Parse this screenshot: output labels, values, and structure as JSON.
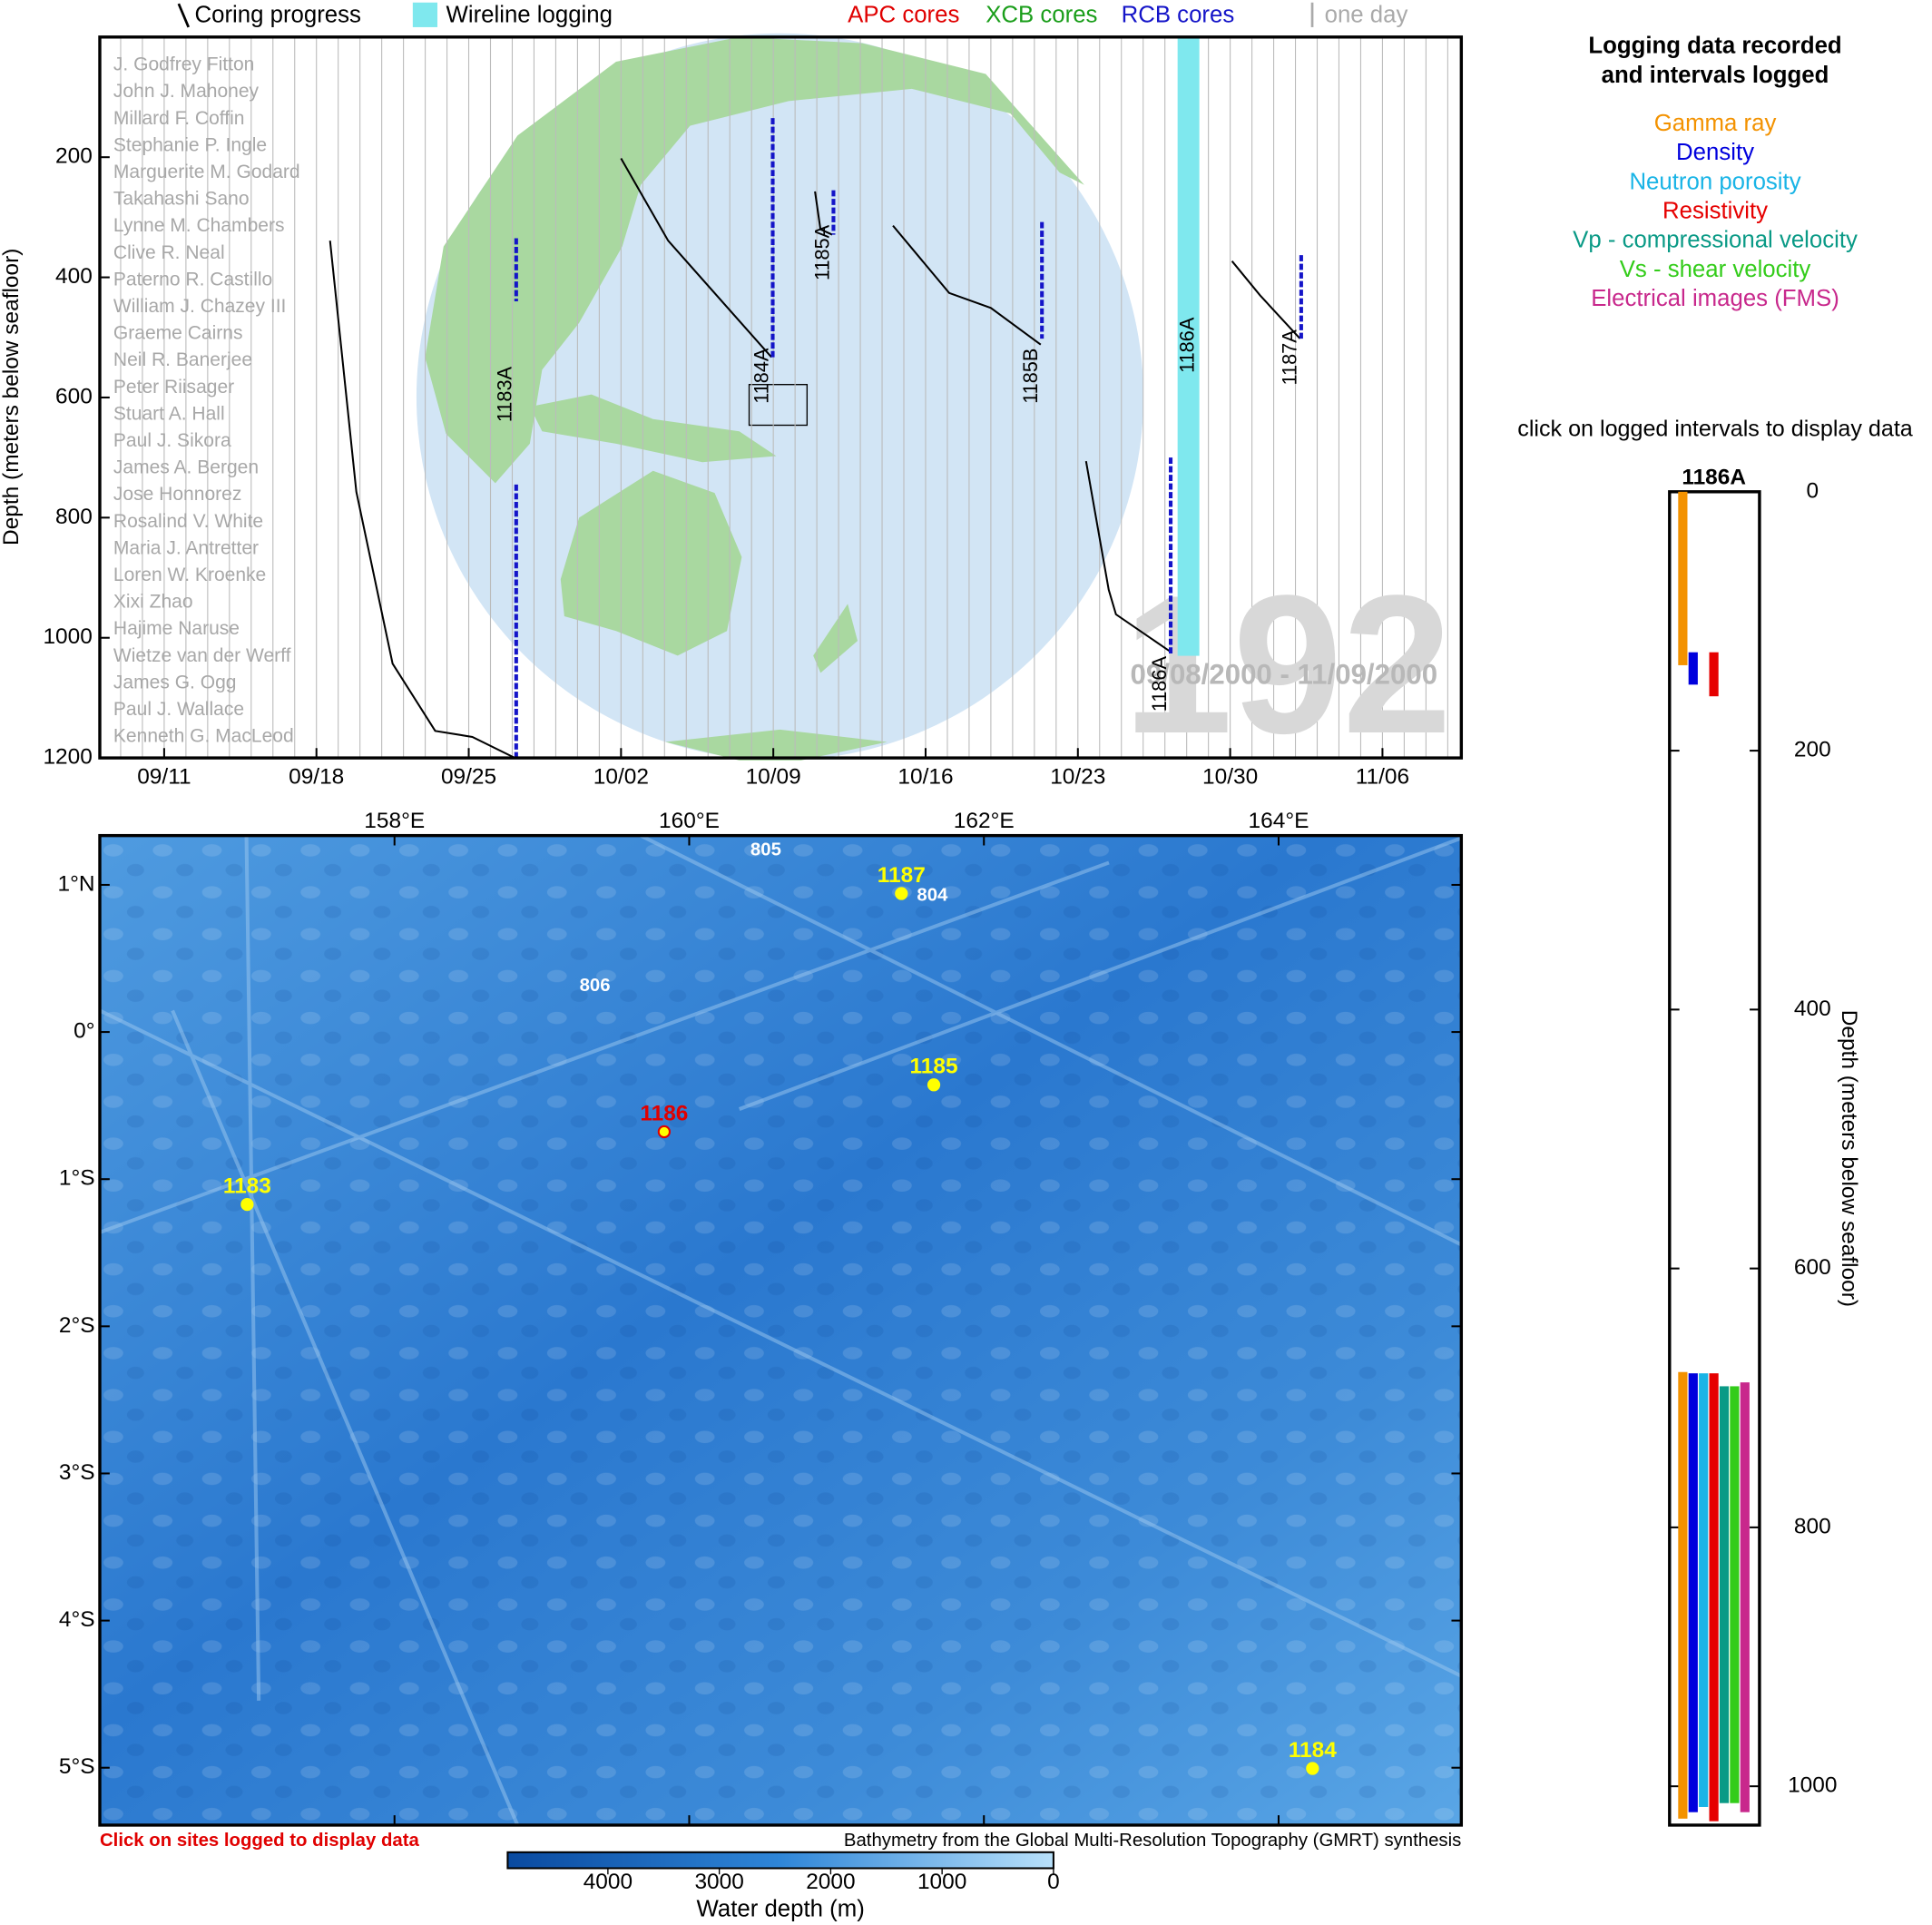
{
  "timeline": {
    "legend": [
      {
        "label": "Coring progress",
        "color": "#000000"
      },
      {
        "label": "Wireline logging",
        "color": "#7fe8ee"
      },
      {
        "label": "APC cores",
        "color": "#e00000"
      },
      {
        "label": "XCB cores",
        "color": "#1a9e1a"
      },
      {
        "label": "RCB cores",
        "color": "#1414c8"
      },
      {
        "label": "one day",
        "color": "#aaaaaa"
      }
    ],
    "y_label": "Depth (meters below seafloor)",
    "ylim": [
      0,
      1200
    ],
    "yticks": [
      200,
      400,
      600,
      800,
      1000,
      1200
    ],
    "xlim": [
      "2000-09-08T01:00",
      "2000-11-09T15:00"
    ],
    "xticks": [
      {
        "value": "2000-09-11T00:00",
        "label": "09/11"
      },
      {
        "value": "2000-09-18T00:00",
        "label": "09/18"
      },
      {
        "value": "2000-09-25T00:00",
        "label": "09/25"
      },
      {
        "value": "2000-10-02T00:00",
        "label": "10/02"
      },
      {
        "value": "2000-10-09T00:00",
        "label": "10/09"
      },
      {
        "value": "2000-10-16T00:00",
        "label": "10/16"
      },
      {
        "value": "2000-10-23T00:00",
        "label": "10/23"
      },
      {
        "value": "2000-10-30T00:00",
        "label": "10/30"
      },
      {
        "value": "2000-11-06T00:00",
        "label": "11/06"
      }
    ],
    "scientists": [
      "J. Godfrey Fitton",
      "John J. Mahoney",
      "Millard F. Coffin",
      "Stephanie P. Ingle",
      "Marguerite M. Godard",
      "Takahashi Sano",
      "Lynne M. Chambers",
      "Clive R. Neal",
      "Paterno R. Castillo",
      "William J. Chazey III",
      "Graeme Cairns",
      "Neil R. Banerjee",
      "Peter Riisager",
      "Stuart A. Hall",
      "Paul J. Sikora",
      "James A. Bergen",
      "Jose Honnorez",
      "Rosalind V. White",
      "Maria J. Antretter",
      "Loren W. Kroenke",
      "Xixi Zhao",
      "Hajime Naruse",
      "Wietze van der Werff",
      "James G. Ogg",
      "Paul J. Wallace",
      "Kenneth G. MacLeod"
    ],
    "expedition": "192",
    "date_range": "09/08/2000 - 11/09/2000",
    "coring": [
      {
        "site": "1183A",
        "times": [
          "2000-09-18T15:00",
          "2000-09-19T20:00",
          "2000-09-21T12:00",
          "2000-09-23T11:00",
          "2000-09-25T04:00",
          "2000-09-27T03:00"
        ],
        "depths": [
          339,
          757,
          1043,
          1155,
          1165,
          1200
        ],
        "rcb": [
          [
            335,
            440
          ],
          [
            745,
            1200
          ]
        ]
      },
      {
        "site": "1184A",
        "times": [
          "2000-10-02T00:00",
          "2000-10-04T04:00",
          "2000-10-08T22:00"
        ],
        "depths": [
          202,
          339,
          533
        ],
        "rcb": [
          [
            135,
            533
          ]
        ]
      },
      {
        "site": "1185A",
        "times": [
          "2000-10-10T22:00",
          "2000-10-11T04:00",
          "2000-10-11T17:00"
        ],
        "depths": [
          257,
          320,
          329
        ],
        "rcb": [
          [
            255,
            329
          ]
        ]
      },
      {
        "site": "1185B",
        "times": [
          "2000-10-14T12:00",
          "2000-10-17T02:00",
          "2000-10-19T00:00",
          "2000-10-21T07:00"
        ],
        "depths": [
          314,
          426,
          451,
          512
        ],
        "rcb": [
          [
            308,
            502
          ]
        ]
      },
      {
        "site": "1186A",
        "times": [
          "2000-10-23T09:00",
          "2000-10-24T10:00",
          "2000-10-24T18:00",
          "2000-10-27T05:00"
        ],
        "depths": [
          706,
          920,
          961,
          1022
        ],
        "rcb": [
          [
            700,
            1030
          ]
        ]
      },
      {
        "site": "1187A",
        "times": [
          "2000-10-30T02:00",
          "2000-10-31T09:00",
          "2000-11-02T05:00"
        ],
        "depths": [
          373,
          430,
          502
        ],
        "rcb": [
          [
            363,
            502
          ]
        ]
      }
    ],
    "wireline": {
      "site": "1186A",
      "start": "2000-10-27T14:00",
      "end": "2000-10-28T14:00",
      "top": 0,
      "bottom": 1030
    }
  },
  "logs": {
    "title_lines": [
      "Logging data recorded",
      "and intervals logged"
    ],
    "hint": "click on logged intervals to display data",
    "site": "1186A",
    "y_label": "Depth (meters below seafloor)",
    "ylim": [
      0,
      1030
    ],
    "yticks": [
      0,
      200,
      400,
      600,
      800,
      1000
    ],
    "tools": [
      {
        "name": "Gamma ray",
        "color": "#f39200",
        "intervals": [
          [
            0,
            134
          ],
          [
            680,
            1025
          ]
        ]
      },
      {
        "name": "Density",
        "color": "#0000dd",
        "intervals": [
          [
            124,
            149
          ],
          [
            681,
            1020
          ]
        ]
      },
      {
        "name": "Neutron porosity",
        "color": "#19b4e6",
        "intervals": [
          [
            681,
            1016
          ]
        ]
      },
      {
        "name": "Resistivity",
        "color": "#e60000",
        "intervals": [
          [
            124,
            158
          ],
          [
            681,
            1027
          ]
        ]
      },
      {
        "name": "Vp - compressional velocity",
        "color": "#0a9a86",
        "intervals": [
          [
            691,
            1013
          ]
        ]
      },
      {
        "name": "Vs - shear velocity",
        "color": "#33cc1a",
        "intervals": [
          [
            691,
            1013
          ]
        ]
      },
      {
        "name": "Electrical images (FMS)",
        "color": "#c8288c",
        "intervals": [
          [
            688,
            1020
          ]
        ]
      }
    ]
  },
  "map": {
    "xlim": [
      156,
      165.24
    ],
    "ylim": [
      -5.39,
      1.335
    ],
    "xticks": [
      {
        "value": 158,
        "label": "158°E"
      },
      {
        "value": 160,
        "label": "160°E"
      },
      {
        "value": 162,
        "label": "162°E"
      },
      {
        "value": 164,
        "label": "164°E"
      }
    ],
    "yticks": [
      {
        "value": 1,
        "label": "1°N"
      },
      {
        "value": 0,
        "label": "0°"
      },
      {
        "value": -1,
        "label": "1°S"
      },
      {
        "value": -2,
        "label": "2°S"
      },
      {
        "value": -3,
        "label": "3°S"
      },
      {
        "value": -4,
        "label": "4°S"
      },
      {
        "value": -5,
        "label": "5°S"
      }
    ],
    "sites": [
      {
        "name": "1187",
        "lon": 161.44,
        "lat": 0.941,
        "color": "#ffff00"
      },
      {
        "name": "1185",
        "lon": 161.66,
        "lat": -0.359,
        "color": "#ffff00"
      },
      {
        "name": "1186",
        "lon": 159.83,
        "lat": -0.678,
        "color": "#e00000"
      },
      {
        "name": "1183",
        "lon": 157.0,
        "lat": -1.172,
        "color": "#ffff00"
      },
      {
        "name": "1184",
        "lon": 164.23,
        "lat": -5.005,
        "color": "#ffff00"
      }
    ],
    "odp_sites": [
      {
        "name": "805",
        "lon": 160.52,
        "lat": 1.234
      },
      {
        "name": "804",
        "lon": 161.65,
        "lat": 0.924
      },
      {
        "name": "806",
        "lon": 159.36,
        "lat": 0.312
      }
    ],
    "note": "Click on sites logged to display data",
    "credit": "Bathymetry from the Global Multi-Resolution Topography (GMRT) synthesis",
    "colorbar": {
      "label": "Water depth (m)",
      "lim": [
        4900,
        0
      ],
      "ticks": [
        4000,
        3000,
        2000,
        1000,
        0
      ]
    }
  }
}
